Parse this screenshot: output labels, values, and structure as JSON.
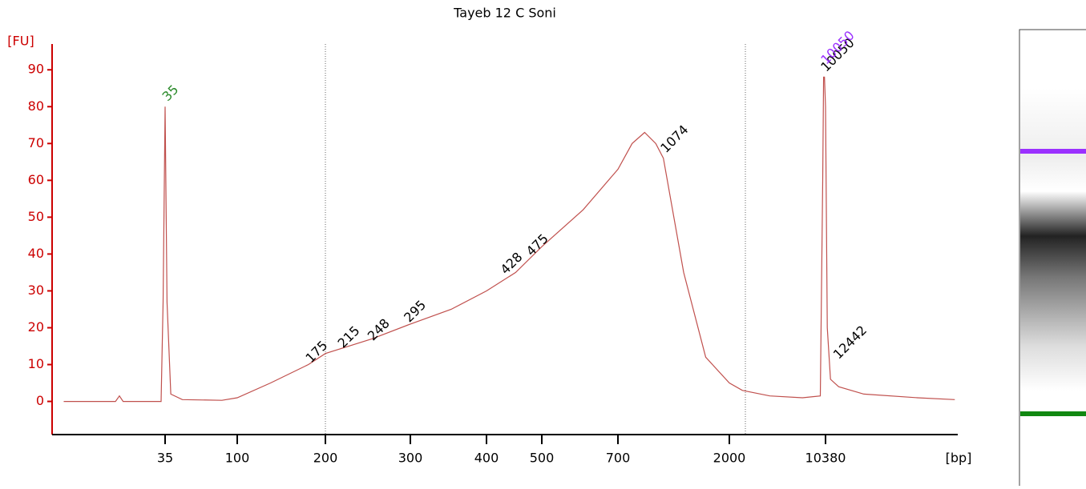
{
  "chart_data": {
    "type": "line",
    "title": "Tayeb 12 C Soni",
    "ylabel": "[FU]",
    "xlabel": "[bp]",
    "ylim": [
      -9,
      97
    ],
    "yticks": [
      0,
      10,
      20,
      30,
      40,
      50,
      60,
      70,
      80,
      90
    ],
    "xticks": [
      35,
      100,
      200,
      300,
      400,
      500,
      700,
      2000,
      10380
    ],
    "axis_color": "#cc0000",
    "series": [
      {
        "color": "#c0504d",
        "x": [
          8,
          17,
          18,
          19,
          33,
          34,
          35,
          36,
          38,
          45,
          80,
          100,
          130,
          175,
          200,
          250,
          300,
          350,
          400,
          450,
          500,
          600,
          700,
          800,
          900,
          1000,
          1074,
          1300,
          1600,
          2000,
          2500,
          4000,
          7000,
          9500,
          9900,
          10050,
          10200,
          10380,
          10700,
          11300,
          13000,
          20000,
          50000,
          95000
        ],
        "values": [
          0,
          0,
          1.5,
          0,
          0,
          27,
          80,
          27,
          2,
          0.5,
          0.3,
          1,
          5,
          10,
          13,
          17,
          21,
          25,
          30,
          35,
          42,
          52,
          63,
          70,
          73,
          70,
          66,
          35,
          12,
          5,
          3,
          1.5,
          1,
          1.5,
          60,
          88,
          88,
          80,
          20,
          6,
          4,
          2,
          1,
          0.5
        ]
      }
    ],
    "peak_labels": [
      {
        "bp": 35,
        "fu": 82,
        "color": "#2a8a2a"
      },
      {
        "bp": 175,
        "fu": 11,
        "color": "#000000"
      },
      {
        "bp": 215,
        "fu": 15,
        "color": "#000000"
      },
      {
        "bp": 248,
        "fu": 17,
        "color": "#000000"
      },
      {
        "bp": 295,
        "fu": 22,
        "color": "#000000"
      },
      {
        "bp": 428,
        "fu": 35,
        "color": "#000000"
      },
      {
        "bp": 475,
        "fu": 40,
        "color": "#000000"
      },
      {
        "bp": 1074,
        "fu": 68,
        "color": "#000000"
      },
      {
        "bp": 10050,
        "fu": 90,
        "color": "#000000"
      },
      {
        "bp": 10050,
        "fu": 92,
        "color": "#9b30ff"
      },
      {
        "bp": 12442,
        "fu": 12,
        "color": "#000000"
      }
    ]
  }
}
